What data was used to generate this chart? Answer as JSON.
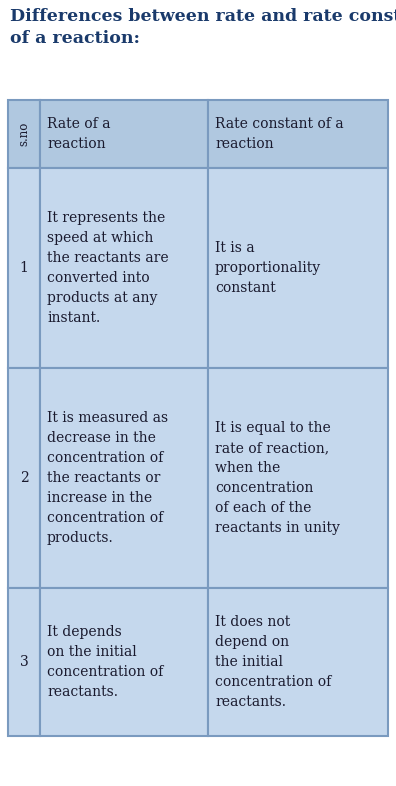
{
  "title": "Differences between rate and rate constant\nof a reaction:",
  "title_color": "#1a3a6b",
  "title_fontsize": 12.5,
  "bg_color": "#ffffff",
  "table_bg_light": "#c5d8ed",
  "table_bg_dark": "#b0c8e0",
  "border_color": "#7a9abf",
  "text_color": "#1a1a2e",
  "header_sno": "s.no",
  "header_col1": "Rate of a\nreaction",
  "header_col2": "Rate constant of a\nreaction",
  "rows": [
    {
      "sno": "1",
      "col1": "It represents the\nspeed at which\nthe reactants are\nconverted into\nproducts at any\ninstant.",
      "col2": "It is a\nproportionality\nconstant"
    },
    {
      "sno": "2",
      "col1": "It is measured as\ndecrease in the\nconcentration of\nthe reactants or\nincrease in the\nconcentration of\nproducts.",
      "col2": "It is equal to the\nrate of reaction,\nwhen the\nconcentration\nof each of the\nreactants in unity"
    },
    {
      "sno": "3",
      "col1": "It depends\non the initial\nconcentration of\nreactants.",
      "col2": "It does not\ndepend on\nthe initial\nconcentration of\nreactants."
    }
  ],
  "figsize": [
    3.96,
    7.86
  ],
  "dpi": 100
}
